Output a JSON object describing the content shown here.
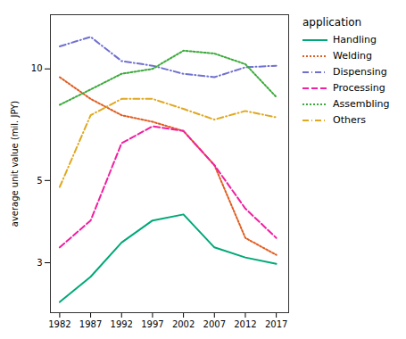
{
  "chart_data": {
    "type": "line",
    "x": [
      1982,
      1987,
      1992,
      1997,
      2002,
      2007,
      2012,
      2017
    ],
    "series": [
      {
        "name": "Handling",
        "color": "#00a878",
        "line_style": "solid",
        "values": [
          2.35,
          2.75,
          3.4,
          3.9,
          4.05,
          3.3,
          3.1,
          2.98
        ]
      },
      {
        "name": "Welding",
        "color": "#e05c20",
        "line_style": "dotted",
        "values": [
          9.5,
          8.3,
          7.5,
          7.2,
          6.8,
          5.5,
          3.5,
          3.15
        ]
      },
      {
        "name": "Dispensing",
        "color": "#7070d0",
        "line_style": "dashdot",
        "values": [
          11.5,
          12.2,
          10.5,
          10.2,
          9.7,
          9.5,
          10.1,
          10.2
        ]
      },
      {
        "name": "Processing",
        "color": "#f020a0",
        "line_style": "dashed",
        "values": [
          3.3,
          3.9,
          6.3,
          7.0,
          6.8,
          5.5,
          4.2,
          3.5
        ]
      },
      {
        "name": "Assembling",
        "color": "#3aaa3a",
        "line_style": "dotted",
        "values": [
          8.0,
          8.8,
          9.7,
          10.0,
          11.2,
          11.0,
          10.3,
          8.4
        ]
      },
      {
        "name": "Others",
        "color": "#e0a820",
        "line_style": "dashdot",
        "values": [
          4.8,
          7.5,
          8.3,
          8.3,
          7.8,
          7.3,
          7.7,
          7.4
        ]
      }
    ],
    "ylabel": "average unit value (mil. JPY)",
    "legend_title": "application",
    "legend": "right",
    "log": "y",
    "grid": false,
    "xlim": [
      1980.5,
      2019
    ],
    "xticks": [
      1982,
      1987,
      1992,
      1997,
      2002,
      2007,
      2012,
      2017
    ],
    "ylim": [
      2.2,
      14.0
    ],
    "yticks": [
      3,
      5,
      10
    ]
  }
}
